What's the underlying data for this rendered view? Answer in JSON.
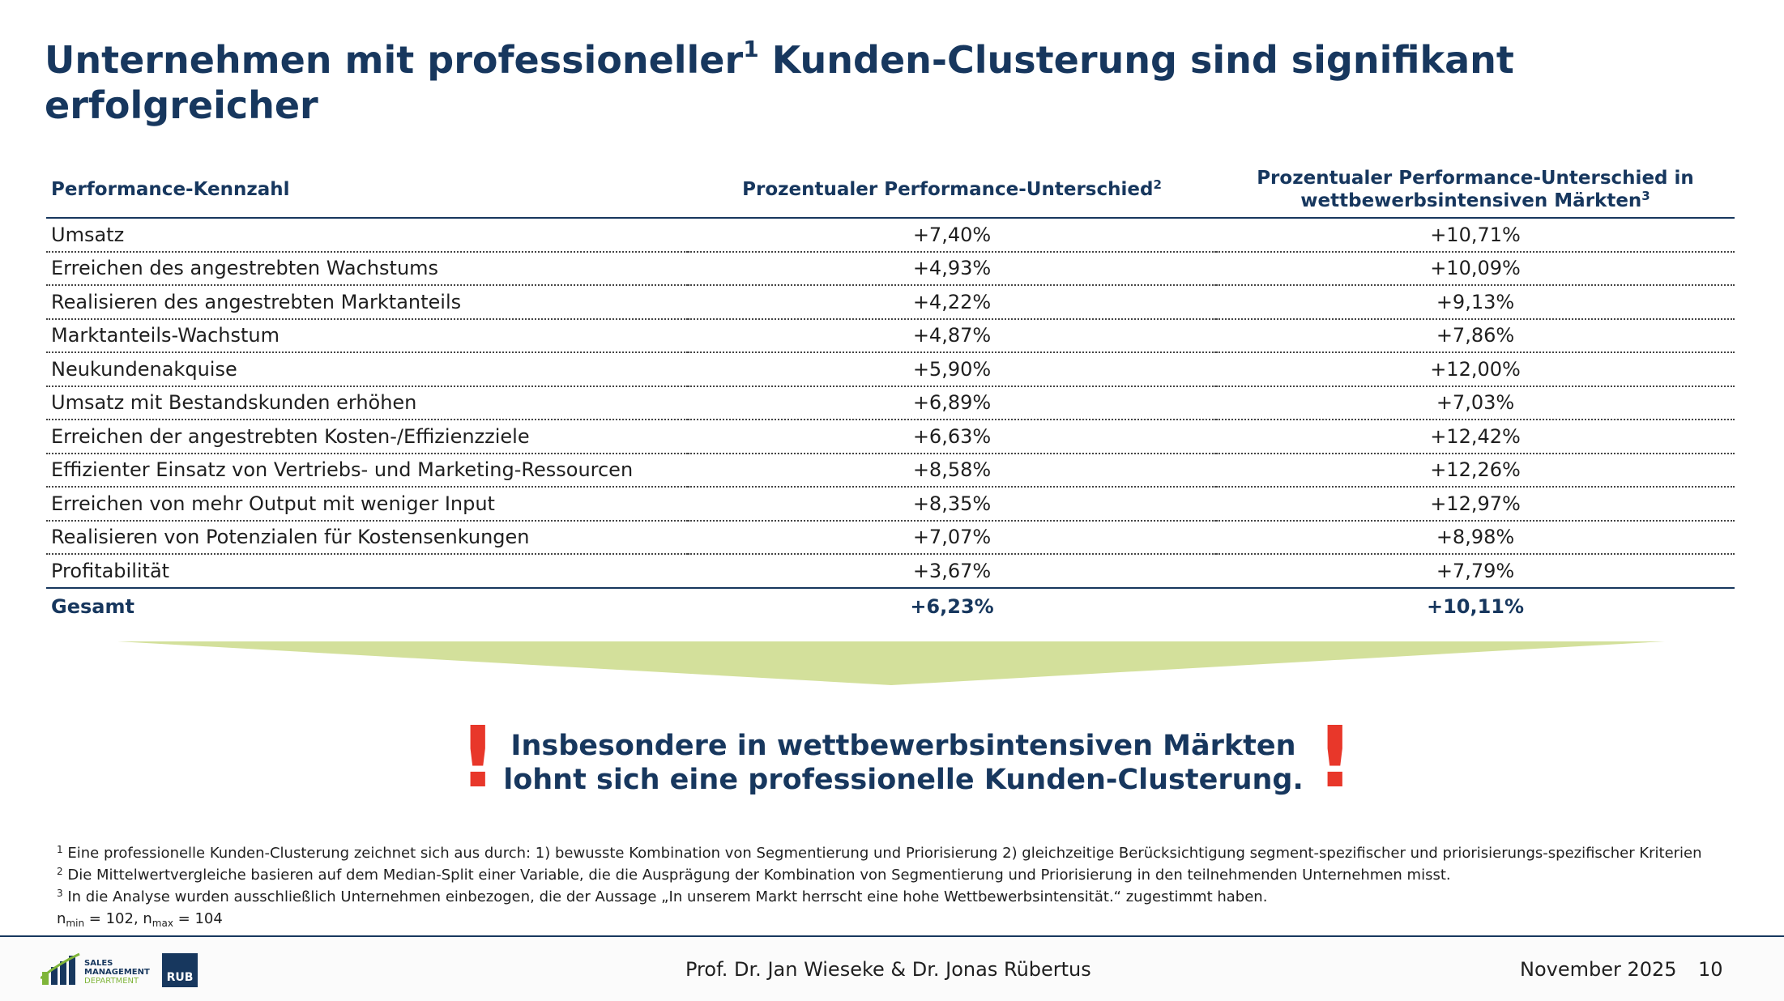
{
  "title": {
    "part1": "Unternehmen mit professioneller",
    "sup": "1",
    "part2": " Kunden-Clusterung sind signifikant erfolgreicher"
  },
  "table": {
    "headers": {
      "col1": "Performance-Kennzahl",
      "col2": "Prozentualer Performance-Unterschied",
      "col2_sup": "2",
      "col3_line1": "Prozentualer Performance-Unterschied in",
      "col3_line2": "wettbewerbsintensiven Märkten",
      "col3_sup": "3"
    },
    "rows": [
      {
        "label": "Umsatz",
        "v1": "+7,40%",
        "v2": "+10,71%"
      },
      {
        "label": "Erreichen des angestrebten Wachstums",
        "v1": "+4,93%",
        "v2": "+10,09%"
      },
      {
        "label": "Realisieren des angestrebten Marktanteils",
        "v1": "+4,22%",
        "v2": "+9,13%"
      },
      {
        "label": "Marktanteils-Wachstum",
        "v1": "+4,87%",
        "v2": "+7,86%"
      },
      {
        "label": "Neukundenakquise",
        "v1": "+5,90%",
        "v2": "+12,00%"
      },
      {
        "label": "Umsatz mit Bestandskunden erhöhen",
        "v1": "+6,89%",
        "v2": "+7,03%"
      },
      {
        "label": "Erreichen der angestrebten Kosten-/Effizienzziele",
        "v1": "+6,63%",
        "v2": "+12,42%"
      },
      {
        "label": "Effizienter Einsatz von Vertriebs- und Marketing-Ressourcen",
        "v1": "+8,58%",
        "v2": "+12,26%"
      },
      {
        "label": "Erreichen von mehr Output mit weniger Input",
        "v1": "+8,35%",
        "v2": "+12,97%"
      },
      {
        "label": "Realisieren von Potenzialen für Kostensenkungen",
        "v1": "+7,07%",
        "v2": "+8,98%"
      },
      {
        "label": "Profitabilität",
        "v1": "+3,67%",
        "v2": "+7,79%"
      }
    ],
    "total": {
      "label": "Gesamt",
      "v1": "+6,23%",
      "v2": "+10,11%"
    }
  },
  "callout": {
    "mark": "!",
    "line1": "Insbesondere in wettbewerbsintensiven Märkten",
    "line2": "lohnt sich eine professionelle Kunden-Clusterung."
  },
  "footnotes": {
    "f1_num": "1",
    "f1": " Eine professionelle Kunden-Clusterung zeichnet sich aus durch: 1) bewusste Kombination von Segmentierung und Priorisierung 2) gleichzeitige Berücksichtigung segment-spezifischer und priorisierungs-spezifischer Kriterien",
    "f2_num": "2",
    "f2": " Die Mittelwertvergleiche basieren auf dem Median-Split einer Variable, die die Ausprägung der Kombination von Segmentierung und Priorisierung in den teilnehmenden Unternehmen misst.",
    "f3_num": "3",
    "f3": " In die Analyse wurden ausschließlich Unternehmen einbezogen, die der Aussage „In unserem Markt herrscht eine hohe Wettbewerbsintensität.“ zugestimmt haben.",
    "n_min_sub": "min",
    "n_min_val": " = 102, n",
    "n_max_sub": "max",
    "n_max_val": " = 104",
    "n": "n"
  },
  "footer": {
    "authors": "Prof. Dr. Jan Wieseke & Dr. Jonas Rübertus",
    "date": "November 2025",
    "page": "10",
    "logo_line1": "SALES",
    "logo_line2": "MANAGEMENT",
    "logo_line3": "DEPARTMENT",
    "rub": "RUB"
  },
  "colors": {
    "navy": "#17375e",
    "arrow": "#d3e09b",
    "alert": "#e8372a",
    "logo_green": "#7fb539"
  }
}
